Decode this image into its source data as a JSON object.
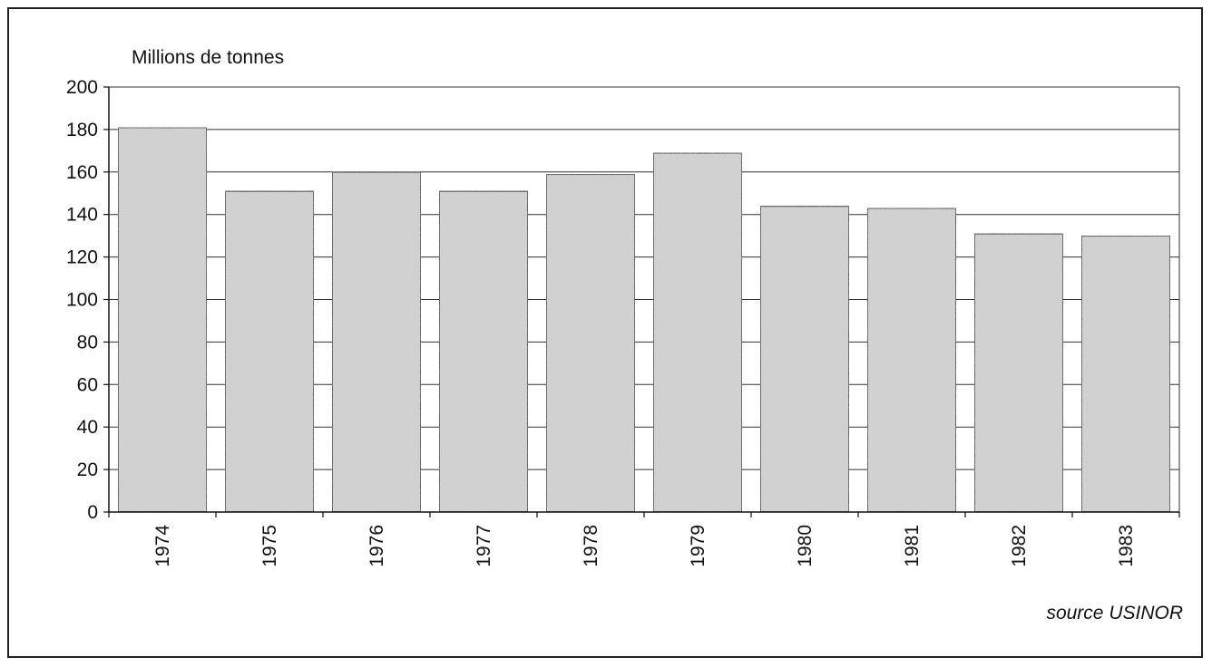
{
  "chart_data": {
    "type": "bar",
    "ylabel": "Millions de tonnes",
    "categories": [
      "1974",
      "1975",
      "1976",
      "1977",
      "1978",
      "1979",
      "1980",
      "1981",
      "1982",
      "1983"
    ],
    "values": [
      181,
      151,
      160,
      151,
      159,
      169,
      144,
      143,
      131,
      130
    ],
    "ylim": [
      0,
      200
    ],
    "yticks": [
      0,
      20,
      40,
      60,
      80,
      100,
      120,
      140,
      160,
      180,
      200
    ],
    "grid": true,
    "legend": "none",
    "annotations": [
      "source USINOR"
    ],
    "colors": {
      "bar_fill": "#d6d6d6",
      "bar_stroke": "#111111",
      "grid": "#333333",
      "frame": "#222222"
    }
  }
}
